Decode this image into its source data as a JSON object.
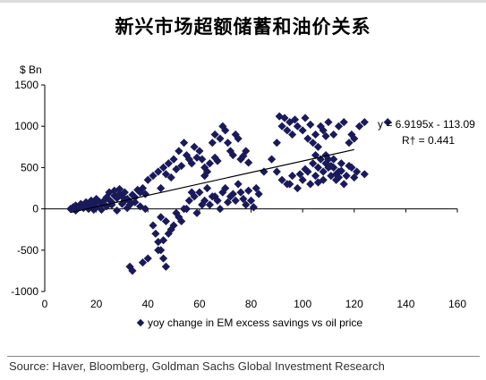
{
  "title": "新兴市场超额储蓄和油价关系",
  "source": "Source: Haver, Bloomberg, Goldman Sachs Global Investment Research",
  "chart_data": {
    "type": "scatter",
    "ylabel": "$ Bn",
    "xlim": [
      0,
      160
    ],
    "ylim": [
      -1000,
      1500
    ],
    "xticks": [
      0,
      20,
      40,
      60,
      80,
      100,
      120,
      140,
      160
    ],
    "yticks": [
      -1000,
      -500,
      0,
      500,
      1000,
      1500
    ],
    "xtick_labels": [
      "0",
      "20",
      "40",
      "60",
      "80",
      "100",
      "120",
      "140",
      "160"
    ],
    "ytick_labels": [
      "-1000",
      "-500",
      "0",
      "500",
      "1000",
      "1500"
    ],
    "grid": false,
    "legend_position": "bottom",
    "marker_color": "#1a1a5a",
    "series": [
      {
        "name": "yoy change in EM excess savings vs oil price",
        "points": [
          [
            10,
            0
          ],
          [
            11,
            20
          ],
          [
            12,
            40
          ],
          [
            13,
            10
          ],
          [
            14,
            60
          ],
          [
            15,
            30
          ],
          [
            16,
            80
          ],
          [
            17,
            50
          ],
          [
            18,
            100
          ],
          [
            19,
            70
          ],
          [
            20,
            120
          ],
          [
            21,
            90
          ],
          [
            22,
            60
          ],
          [
            23,
            100
          ],
          [
            24,
            140
          ],
          [
            25,
            110
          ],
          [
            26,
            80
          ],
          [
            27,
            160
          ],
          [
            28,
            130
          ],
          [
            29,
            180
          ],
          [
            30,
            150
          ],
          [
            31,
            200
          ],
          [
            32,
            120
          ],
          [
            33,
            90
          ],
          [
            34,
            170
          ],
          [
            35,
            140
          ],
          [
            36,
            230
          ],
          [
            37,
            200
          ],
          [
            38,
            250
          ],
          [
            39,
            180
          ],
          [
            12,
            -20
          ],
          [
            15,
            10
          ],
          [
            18,
            40
          ],
          [
            20,
            20
          ],
          [
            22,
            -10
          ],
          [
            24,
            30
          ],
          [
            26,
            50
          ],
          [
            28,
            -20
          ],
          [
            30,
            60
          ],
          [
            32,
            10
          ],
          [
            25,
            200
          ],
          [
            27,
            220
          ],
          [
            29,
            240
          ],
          [
            31,
            100
          ],
          [
            33,
            50
          ],
          [
            35,
            80
          ],
          [
            37,
            30
          ],
          [
            39,
            0
          ],
          [
            17,
            0
          ],
          [
            19,
            -10
          ],
          [
            40,
            350
          ],
          [
            42,
            400
          ],
          [
            44,
            450
          ],
          [
            45,
            250
          ],
          [
            46,
            500
          ],
          [
            48,
            550
          ],
          [
            50,
            600
          ],
          [
            52,
            700
          ],
          [
            54,
            800
          ],
          [
            55,
            650
          ],
          [
            56,
            600
          ],
          [
            57,
            550
          ],
          [
            58,
            750
          ],
          [
            60,
            700
          ],
          [
            61,
            600
          ],
          [
            62,
            500
          ],
          [
            63,
            450
          ],
          [
            64,
            550
          ],
          [
            65,
            800
          ],
          [
            66,
            900
          ],
          [
            68,
            850
          ],
          [
            69,
            1000
          ],
          [
            70,
            950
          ],
          [
            71,
            800
          ],
          [
            72,
            700
          ],
          [
            73,
            650
          ],
          [
            74,
            900
          ],
          [
            75,
            850
          ],
          [
            76,
            600
          ],
          [
            78,
            700
          ],
          [
            47,
            420
          ],
          [
            49,
            380
          ],
          [
            51,
            480
          ],
          [
            53,
            520
          ],
          [
            59,
            620
          ],
          [
            67,
            580
          ],
          [
            77,
            640
          ],
          [
            79,
            560
          ],
          [
            62,
            400
          ],
          [
            66,
            620
          ],
          [
            42,
            -200
          ],
          [
            43,
            -300
          ],
          [
            44,
            -400
          ],
          [
            45,
            -500
          ],
          [
            46,
            -600
          ],
          [
            47,
            -700
          ],
          [
            38,
            -650
          ],
          [
            40,
            -600
          ],
          [
            34,
            -750
          ],
          [
            33,
            -700
          ],
          [
            48,
            -300
          ],
          [
            50,
            -200
          ],
          [
            52,
            -100
          ],
          [
            54,
            0
          ],
          [
            56,
            100
          ],
          [
            58,
            150
          ],
          [
            60,
            200
          ],
          [
            62,
            100
          ],
          [
            64,
            50
          ],
          [
            66,
            150
          ],
          [
            45,
            -100
          ],
          [
            47,
            -150
          ],
          [
            49,
            -250
          ],
          [
            51,
            -50
          ],
          [
            53,
            -150
          ],
          [
            55,
            0
          ],
          [
            57,
            200
          ],
          [
            59,
            -50
          ],
          [
            61,
            50
          ],
          [
            63,
            250
          ],
          [
            65,
            150
          ],
          [
            67,
            100
          ],
          [
            69,
            200
          ],
          [
            70,
            250
          ],
          [
            72,
            150
          ],
          [
            74,
            100
          ],
          [
            76,
            200
          ],
          [
            78,
            50
          ],
          [
            80,
            100
          ],
          [
            82,
            250
          ],
          [
            68,
            0
          ],
          [
            71,
            80
          ],
          [
            73,
            180
          ],
          [
            75,
            300
          ],
          [
            77,
            120
          ],
          [
            79,
            220
          ],
          [
            81,
            20
          ],
          [
            83,
            180
          ],
          [
            44,
            -500
          ],
          [
            46,
            -380
          ],
          [
            85,
            450
          ],
          [
            88,
            600
          ],
          [
            90,
            800
          ],
          [
            92,
            1000
          ],
          [
            93,
            1100
          ],
          [
            94,
            950
          ],
          [
            95,
            1050
          ],
          [
            96,
            900
          ],
          [
            98,
            1000
          ],
          [
            100,
            950
          ],
          [
            101,
            1100
          ],
          [
            102,
            850
          ],
          [
            104,
            800
          ],
          [
            105,
            900
          ],
          [
            106,
            750
          ],
          [
            107,
            1000
          ],
          [
            108,
            950
          ],
          [
            110,
            1050
          ],
          [
            112,
            900
          ],
          [
            114,
            1000
          ],
          [
            116,
            1050
          ],
          [
            118,
            800
          ],
          [
            119,
            900
          ],
          [
            120,
            850
          ],
          [
            122,
            1000
          ],
          [
            124,
            1050
          ],
          [
            91,
            1120
          ],
          [
            97,
            1080
          ],
          [
            103,
            1020
          ],
          [
            109,
            880
          ],
          [
            90,
            450
          ],
          [
            92,
            350
          ],
          [
            94,
            300
          ],
          [
            96,
            400
          ],
          [
            98,
            250
          ],
          [
            100,
            350
          ],
          [
            102,
            450
          ],
          [
            104,
            550
          ],
          [
            105,
            400
          ],
          [
            106,
            500
          ],
          [
            107,
            600
          ],
          [
            108,
            450
          ],
          [
            109,
            550
          ],
          [
            110,
            500
          ],
          [
            111,
            400
          ],
          [
            112,
            600
          ],
          [
            113,
            350
          ],
          [
            114,
            450
          ],
          [
            115,
            550
          ],
          [
            116,
            300
          ],
          [
            103,
            300
          ],
          [
            105,
            650
          ],
          [
            108,
            350
          ],
          [
            110,
            600
          ],
          [
            112,
            500
          ],
          [
            114,
            380
          ],
          [
            117,
            400
          ],
          [
            119,
            500
          ],
          [
            121,
            450
          ],
          [
            124,
            420
          ],
          [
            95,
            300
          ],
          [
            99,
            420
          ],
          [
            101,
            480
          ],
          [
            106,
            320
          ],
          [
            109,
            650
          ],
          [
            111,
            520
          ],
          [
            113,
            420
          ],
          [
            115,
            460
          ],
          [
            118,
            520
          ],
          [
            120,
            380
          ],
          [
            133,
            1050
          ]
        ]
      }
    ],
    "trendline": {
      "slope": 6.9195,
      "intercept": -113.09,
      "x_range": [
        10,
        120
      ],
      "equation_label": "y = 6.9195x - 113.09",
      "r2_label": "R† = 0.441"
    }
  }
}
